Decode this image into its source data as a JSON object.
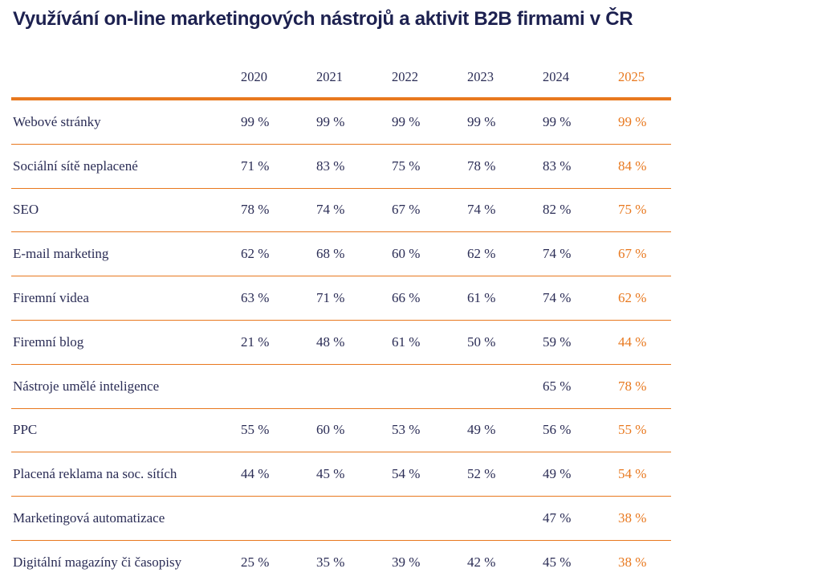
{
  "title": "Využívání on-line marketingových nástrojů a aktivit B2B firmami v ČR",
  "accent_color": "#e8781e",
  "text_color": "#2a2c55",
  "header": {
    "years": [
      "2020",
      "2021",
      "2022",
      "2023",
      "2024",
      "2025"
    ]
  },
  "rows": [
    {
      "label": "Webové stránky",
      "values": [
        "99 %",
        "99 %",
        "99 %",
        "99 %",
        "99 %",
        "99 %"
      ]
    },
    {
      "label": "Sociální sítě neplacené",
      "values": [
        "71 %",
        "83 %",
        "75 %",
        "78 %",
        "83 %",
        "84 %"
      ]
    },
    {
      "label": "SEO",
      "values": [
        "78 %",
        "74 %",
        "67 %",
        "74 %",
        "82 %",
        "75 %"
      ]
    },
    {
      "label": "E-mail marketing",
      "values": [
        "62 %",
        "68 %",
        "60 %",
        "62 %",
        "74 %",
        "67 %"
      ]
    },
    {
      "label": "Firemní videa",
      "values": [
        "63 %",
        "71 %",
        "66 %",
        "61 %",
        "74 %",
        "62 %"
      ]
    },
    {
      "label": "Firemní blog",
      "values": [
        "21 %",
        "48 %",
        "61 %",
        "50 %",
        "59 %",
        "44 %"
      ]
    },
    {
      "label": "Nástroje umělé inteligence",
      "values": [
        "",
        "",
        "",
        "",
        "65 %",
        "78 %"
      ]
    },
    {
      "label": "PPC",
      "values": [
        "55 %",
        "60 %",
        "53 %",
        "49 %",
        "56 %",
        "55 %"
      ]
    },
    {
      "label": "Placená reklama na soc. sítích",
      "values": [
        "44 %",
        "45 %",
        "54 %",
        "52 %",
        "49 %",
        "54 %"
      ]
    },
    {
      "label": "Marketingová automatizace",
      "values": [
        "",
        "",
        "",
        "",
        "47 %",
        "38 %"
      ]
    },
    {
      "label": "Digitální magazíny či časopisy",
      "values": [
        "25 %",
        "35 %",
        "39 %",
        "42 %",
        "45 %",
        "38 %"
      ]
    }
  ]
}
